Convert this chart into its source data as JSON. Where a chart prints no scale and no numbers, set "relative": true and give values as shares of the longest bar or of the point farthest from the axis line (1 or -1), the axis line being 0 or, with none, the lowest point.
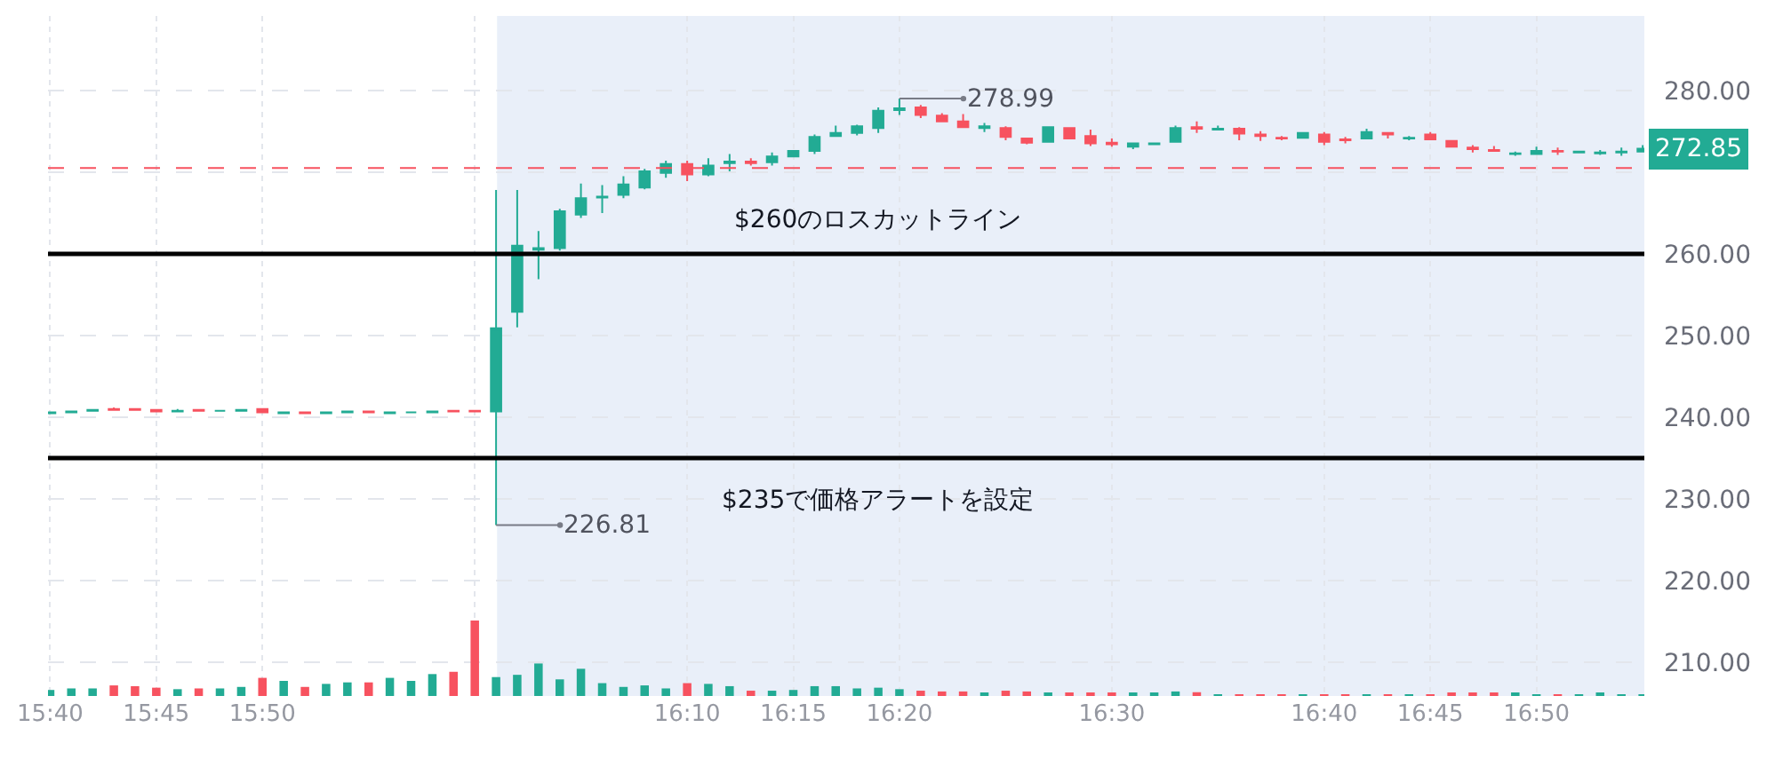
{
  "chart_data": [
    {
      "type": "candlestick",
      "x": [
        15.6667,
        15.6833,
        15.7,
        15.7167,
        15.7333,
        15.75,
        15.7667,
        15.7833,
        15.8,
        15.8167,
        15.8333,
        15.85,
        15.8667,
        15.8833,
        15.9,
        15.9167,
        15.9333,
        15.95,
        15.9667,
        15.9833,
        16,
        16.0167,
        16.0333,
        16.05,
        16.0667,
        16.0833,
        16.1,
        16.1167,
        16.1333,
        16.15,
        16.1667,
        16.1833,
        16.2,
        16.2167,
        16.2333,
        16.25,
        16.2667,
        16.2833,
        16.3,
        16.3167,
        16.3333,
        16.35,
        16.3667,
        16.3833,
        16.4,
        16.4167,
        16.4333,
        16.45,
        16.4667,
        16.4833,
        16.5,
        16.5167,
        16.5333,
        16.55,
        16.5667,
        16.5833,
        16.6,
        16.6167,
        16.6333,
        16.65,
        16.6667,
        16.6833,
        16.7,
        16.7167,
        16.7333,
        16.75,
        16.7667,
        16.7833,
        16.8,
        16.8167,
        16.8333,
        16.85,
        16.8667,
        16.8833,
        16.9,
        16.9167
      ],
      "ohlc": [
        [
          240.5,
          240.7,
          240.5,
          240.6
        ],
        [
          240.6,
          240.8,
          240.6,
          240.7
        ],
        [
          240.8,
          241.0,
          240.8,
          240.9
        ],
        [
          241.0,
          241.2,
          240.9,
          240.9
        ],
        [
          241.0,
          241.0,
          240.8,
          240.9
        ],
        [
          240.9,
          240.9,
          240.6,
          240.7
        ],
        [
          240.7,
          241.0,
          240.7,
          240.8
        ],
        [
          240.9,
          240.9,
          240.7,
          240.8
        ],
        [
          240.8,
          240.8,
          240.7,
          240.8
        ],
        [
          240.8,
          241.0,
          240.8,
          240.9
        ],
        [
          241.0,
          241.0,
          240.6,
          240.6
        ],
        [
          240.5,
          240.6,
          240.5,
          240.6
        ],
        [
          240.6,
          240.6,
          240.5,
          240.5
        ],
        [
          240.5,
          240.6,
          240.5,
          240.6
        ],
        [
          240.6,
          240.8,
          240.6,
          240.7
        ],
        [
          240.7,
          240.8,
          240.5,
          240.6
        ],
        [
          240.5,
          240.6,
          240.5,
          240.6
        ],
        [
          240.6,
          240.7,
          240.5,
          240.6
        ],
        [
          240.6,
          240.7,
          240.6,
          240.7
        ],
        [
          240.8,
          240.9,
          240.7,
          240.7
        ],
        [
          240.8,
          240.8,
          240.6,
          240.7
        ],
        [
          240.7,
          267.8,
          226.81,
          250.9
        ],
        [
          252.9,
          267.8,
          251.0,
          261.0
        ],
        [
          260.5,
          262.8,
          256.9,
          260.7
        ],
        [
          260.7,
          265.5,
          260.4,
          265.2
        ],
        [
          264.8,
          268.6,
          264.4,
          266.8
        ],
        [
          266.9,
          268.4,
          265.0,
          267.0
        ],
        [
          267.2,
          269.5,
          266.8,
          268.5
        ],
        [
          268.1,
          270.4,
          267.9,
          270.1
        ],
        [
          269.9,
          271.4,
          269.3,
          271.0
        ],
        [
          271.0,
          271.4,
          268.9,
          269.7
        ],
        [
          269.7,
          271.7,
          269.5,
          270.8
        ],
        [
          271.1,
          272.2,
          270.1,
          271.3
        ],
        [
          271.3,
          271.7,
          270.8,
          271.1
        ],
        [
          271.2,
          272.4,
          270.8,
          271.9
        ],
        [
          271.9,
          272.7,
          271.8,
          272.6
        ],
        [
          272.6,
          274.6,
          272.2,
          274.3
        ],
        [
          274.4,
          275.7,
          274.3,
          274.8
        ],
        [
          274.8,
          275.8,
          274.5,
          275.6
        ],
        [
          275.4,
          277.9,
          274.8,
          277.5
        ],
        [
          277.6,
          278.99,
          277.0,
          277.8
        ],
        [
          277.9,
          278.2,
          276.6,
          277.0
        ],
        [
          276.9,
          277.2,
          276.1,
          276.2
        ],
        [
          276.2,
          277.1,
          275.4,
          275.5
        ],
        [
          275.4,
          276.0,
          274.9,
          275.6
        ],
        [
          275.4,
          275.6,
          273.9,
          274.3
        ],
        [
          274.1,
          274.2,
          273.4,
          273.6
        ],
        [
          273.7,
          275.6,
          273.6,
          275.5
        ],
        [
          275.4,
          275.5,
          274.0,
          274.1
        ],
        [
          274.4,
          275.2,
          273.2,
          273.5
        ],
        [
          273.6,
          274.1,
          273.1,
          273.4
        ],
        [
          273.1,
          273.6,
          272.8,
          273.5
        ],
        [
          273.4,
          273.6,
          273.3,
          273.5
        ],
        [
          273.7,
          275.7,
          273.6,
          275.4
        ],
        [
          275.5,
          276.2,
          274.8,
          275.3
        ],
        [
          275.2,
          275.7,
          275.1,
          275.3
        ],
        [
          275.3,
          275.5,
          273.9,
          274.7
        ],
        [
          274.6,
          275.0,
          273.8,
          274.4
        ],
        [
          274.2,
          274.4,
          273.9,
          274.1
        ],
        [
          274.2,
          274.9,
          274.1,
          274.8
        ],
        [
          274.6,
          274.9,
          273.3,
          273.7
        ],
        [
          274.0,
          274.3,
          273.5,
          273.9
        ],
        [
          274.1,
          275.3,
          274.0,
          274.9
        ],
        [
          274.8,
          274.9,
          274.1,
          274.6
        ],
        [
          274.1,
          274.4,
          273.9,
          274.2
        ],
        [
          274.6,
          274.9,
          273.9,
          274.0
        ],
        [
          273.8,
          273.9,
          273.0,
          273.1
        ],
        [
          273.0,
          273.3,
          272.4,
          272.8
        ],
        [
          272.7,
          273.2,
          272.5,
          272.6
        ],
        [
          272.2,
          272.5,
          272.0,
          272.3
        ],
        [
          272.2,
          273.1,
          272.1,
          272.6
        ],
        [
          272.6,
          273.0,
          272.1,
          272.5
        ],
        [
          272.4,
          272.5,
          272.4,
          272.5
        ],
        [
          272.3,
          272.7,
          272.1,
          272.4
        ],
        [
          272.4,
          273.0,
          272.0,
          272.5
        ],
        [
          272.5,
          273.3,
          272.4,
          272.85
        ]
      ],
      "colors": [
        "#22ab94",
        "#22ab94",
        "#22ab94",
        "#f7525f",
        "#f7525f",
        "#f7525f",
        "#22ab94",
        "#f7525f",
        "#22ab94",
        "#22ab94",
        "#f7525f",
        "#22ab94",
        "#f7525f",
        "#22ab94",
        "#22ab94",
        "#f7525f",
        "#22ab94",
        "#22ab94",
        "#22ab94",
        "#f7525f",
        "#f7525f",
        "#22ab94",
        "#22ab94",
        "#22ab94",
        "#22ab94",
        "#22ab94",
        "#22ab94",
        "#22ab94",
        "#22ab94",
        "#22ab94",
        "#f7525f",
        "#22ab94",
        "#22ab94",
        "#f7525f",
        "#22ab94",
        "#22ab94",
        "#22ab94",
        "#22ab94",
        "#22ab94",
        "#22ab94",
        "#22ab94",
        "#f7525f",
        "#f7525f",
        "#f7525f",
        "#22ab94",
        "#f7525f",
        "#f7525f",
        "#22ab94",
        "#f7525f",
        "#f7525f",
        "#f7525f",
        "#22ab94",
        "#22ab94",
        "#22ab94",
        "#f7525f",
        "#22ab94",
        "#f7525f",
        "#f7525f",
        "#f7525f",
        "#22ab94",
        "#f7525f",
        "#f7525f",
        "#22ab94",
        "#f7525f",
        "#22ab94",
        "#f7525f",
        "#f7525f",
        "#f7525f",
        "#f7525f",
        "#22ab94",
        "#22ab94",
        "#f7525f",
        "#22ab94",
        "#22ab94",
        "#22ab94",
        "#22ab94"
      ],
      "xlim": [
        15.665,
        16.918
      ],
      "xticks": [
        {
          "value": 15.6667,
          "label": "15:40"
        },
        {
          "value": 15.75,
          "label": "15:45"
        },
        {
          "value": 15.8333,
          "label": "15:50"
        },
        {
          "value": 16,
          "label": null
        },
        {
          "value": 16.1667,
          "label": "16:10"
        },
        {
          "value": 16.25,
          "label": "16:15"
        },
        {
          "value": 16.3333,
          "label": "16:20"
        },
        {
          "value": 16.5,
          "label": "16:30"
        },
        {
          "value": 16.6667,
          "label": "16:40"
        },
        {
          "value": 16.75,
          "label": "16:45"
        },
        {
          "value": 16.8333,
          "label": "16:50"
        }
      ],
      "ylim": [
        205.9,
        289.1
      ],
      "yticks": [
        {
          "value": 210,
          "label": "210.00"
        },
        {
          "value": 220,
          "label": "220.00"
        },
        {
          "value": 230,
          "label": "230.00"
        },
        {
          "value": 240,
          "label": "240.00"
        },
        {
          "value": 250,
          "label": "250.00"
        },
        {
          "value": 260,
          "label": "260.00"
        },
        {
          "value": 270,
          "label": null
        },
        {
          "value": 280,
          "label": "280.00"
        }
      ],
      "grid": true,
      "ref_lines": [
        {
          "axis": "y",
          "value": 270.5,
          "color": "#f7525f",
          "line_style": "dashed"
        },
        {
          "axis": "y",
          "value": 260,
          "label": "$260のロスカットライン",
          "color": "#000000"
        },
        {
          "axis": "y",
          "value": 235,
          "label": "$235で価格アラートを設定",
          "color": "#000000"
        }
      ],
      "bands": [
        {
          "axis": "x",
          "from": 16.0175,
          "to": 16.918,
          "color": "#e9eff9"
        }
      ],
      "annotations": [
        {
          "text": "278.99",
          "x": 16.3333,
          "y": 278.99
        },
        {
          "text": "226.81",
          "x": 16.0167,
          "y": 226.81
        },
        "272.85"
      ]
    },
    {
      "type": "bar",
      "relative": true,
      "x": [
        15.6667,
        15.6833,
        15.7,
        15.7167,
        15.7333,
        15.75,
        15.7667,
        15.7833,
        15.8,
        15.8167,
        15.8333,
        15.85,
        15.8667,
        15.8833,
        15.9,
        15.9167,
        15.9333,
        15.95,
        15.9667,
        15.9833,
        16,
        16.0167,
        16.0333,
        16.05,
        16.0667,
        16.0833,
        16.1,
        16.1167,
        16.1333,
        16.15,
        16.1667,
        16.1833,
        16.2,
        16.2167,
        16.2333,
        16.25,
        16.2667,
        16.2833,
        16.3,
        16.3167,
        16.3333,
        16.35,
        16.3667,
        16.3833,
        16.4,
        16.4167,
        16.4333,
        16.45,
        16.4667,
        16.4833,
        16.5,
        16.5167,
        16.5333,
        16.55,
        16.5667,
        16.5833,
        16.6,
        16.6167,
        16.6333,
        16.65,
        16.6667,
        16.6833,
        16.7,
        16.7167,
        16.7333,
        16.75,
        16.7667,
        16.7833,
        16.8,
        16.8167,
        16.8333,
        16.85,
        16.8667,
        16.8833,
        16.9,
        16.9167
      ],
      "values": [
        0.08,
        0.1,
        0.1,
        0.14,
        0.13,
        0.11,
        0.09,
        0.1,
        0.1,
        0.12,
        0.24,
        0.2,
        0.12,
        0.16,
        0.18,
        0.18,
        0.24,
        0.2,
        0.29,
        0.32,
        1,
        0.25,
        0.28,
        0.43,
        0.22,
        0.36,
        0.17,
        0.12,
        0.14,
        0.1,
        0.17,
        0.16,
        0.13,
        0.07,
        0.07,
        0.08,
        0.13,
        0.13,
        0.1,
        0.11,
        0.09,
        0.07,
        0.06,
        0.06,
        0.04,
        0.07,
        0.06,
        0.04,
        0.04,
        0.03,
        0.04,
        0.04,
        0.03,
        0.06,
        0.05,
        0.02,
        0.02,
        0.02,
        0.02,
        0.02,
        0.02,
        0.02,
        0.02,
        0.02,
        0.02,
        0.02,
        0.04,
        0.04,
        0.04,
        0.04,
        0.02,
        0.02,
        0.02,
        0.04,
        0.02,
        0.02
      ],
      "colors": [
        "#22ab94",
        "#22ab94",
        "#22ab94",
        "#f7525f",
        "#f7525f",
        "#f7525f",
        "#22ab94",
        "#f7525f",
        "#22ab94",
        "#22ab94",
        "#f7525f",
        "#22ab94",
        "#f7525f",
        "#22ab94",
        "#22ab94",
        "#f7525f",
        "#22ab94",
        "#22ab94",
        "#22ab94",
        "#f7525f",
        "#f7525f",
        "#22ab94",
        "#22ab94",
        "#22ab94",
        "#22ab94",
        "#22ab94",
        "#22ab94",
        "#22ab94",
        "#22ab94",
        "#22ab94",
        "#f7525f",
        "#22ab94",
        "#22ab94",
        "#f7525f",
        "#22ab94",
        "#22ab94",
        "#22ab94",
        "#22ab94",
        "#22ab94",
        "#22ab94",
        "#22ab94",
        "#f7525f",
        "#f7525f",
        "#f7525f",
        "#22ab94",
        "#f7525f",
        "#f7525f",
        "#22ab94",
        "#f7525f",
        "#f7525f",
        "#f7525f",
        "#22ab94",
        "#22ab94",
        "#22ab94",
        "#f7525f",
        "#22ab94",
        "#f7525f",
        "#f7525f",
        "#f7525f",
        "#22ab94",
        "#f7525f",
        "#f7525f",
        "#22ab94",
        "#f7525f",
        "#22ab94",
        "#f7525f",
        "#f7525f",
        "#f7525f",
        "#f7525f",
        "#22ab94",
        "#22ab94",
        "#f7525f",
        "#22ab94",
        "#22ab94",
        "#22ab94",
        "#22ab94"
      ],
      "xlim": [
        15.665,
        16.918
      ],
      "tick_labels": false
    }
  ]
}
